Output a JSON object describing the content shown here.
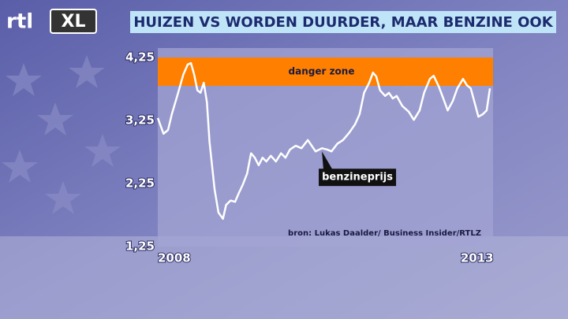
{
  "logo": {
    "left": "rtl",
    "right": "XL"
  },
  "chart_data": {
    "type": "line",
    "title": "HUIZEN VS WORDEN DUURDER, MAAR BENZINE OOK",
    "source": "bron: Lukas Daalder/ Business Insider/RTLZ",
    "x": [
      2008.0,
      2008.09,
      2008.16,
      2008.22,
      2008.31,
      2008.4,
      2008.47,
      2008.52,
      2008.57,
      2008.62,
      2008.67,
      2008.72,
      2008.77,
      2008.81,
      2008.89,
      2008.95,
      2009.02,
      2009.07,
      2009.14,
      2009.21,
      2009.27,
      2009.33,
      2009.4,
      2009.46,
      2009.52,
      2009.58,
      2009.64,
      2009.7,
      2009.77,
      2009.85,
      2009.93,
      2010.0,
      2010.07,
      2010.16,
      2010.25,
      2010.35,
      2010.41,
      2010.47,
      2010.57,
      2010.65,
      2010.72,
      2010.81,
      2010.9,
      2011.0,
      2011.09,
      2011.16,
      2011.23,
      2011.31,
      2011.37,
      2011.42,
      2011.48,
      2011.56,
      2011.62,
      2011.68,
      2011.74,
      2011.83,
      2011.93,
      2012.01,
      2012.1,
      2012.17,
      2012.26,
      2012.32,
      2012.4,
      2012.47,
      2012.54,
      2012.62,
      2012.69,
      2012.78,
      2012.84,
      2012.9,
      2012.96,
      2013.02,
      2013.09,
      2013.15,
      2013.2
    ],
    "series": [
      {
        "name": "benzineprijs",
        "color": "#ffffff",
        "values": [
          3.29,
          3.04,
          3.1,
          3.35,
          3.66,
          3.98,
          4.14,
          4.16,
          3.98,
          3.73,
          3.69,
          3.85,
          3.54,
          2.91,
          2.16,
          1.79,
          1.69,
          1.91,
          1.98,
          1.96,
          2.1,
          2.23,
          2.41,
          2.73,
          2.66,
          2.54,
          2.66,
          2.6,
          2.69,
          2.6,
          2.73,
          2.66,
          2.79,
          2.85,
          2.81,
          2.94,
          2.85,
          2.76,
          2.81,
          2.79,
          2.76,
          2.88,
          2.94,
          3.06,
          3.19,
          3.35,
          3.69,
          3.85,
          4.01,
          3.95,
          3.73,
          3.64,
          3.69,
          3.6,
          3.64,
          3.48,
          3.39,
          3.26,
          3.41,
          3.69,
          3.91,
          3.96,
          3.79,
          3.6,
          3.41,
          3.56,
          3.76,
          3.91,
          3.81,
          3.76,
          3.54,
          3.31,
          3.35,
          3.41,
          3.76
        ]
      }
    ],
    "bands": [
      {
        "label": "danger zone",
        "from": 3.8,
        "to": 4.25,
        "color": "#ff7f00"
      }
    ],
    "xlim": [
      2008,
      2013.25
    ],
    "xticks": [
      2008,
      2013
    ],
    "ylim": [
      1.25,
      4.4
    ],
    "yticks": [
      {
        "value": 1.25,
        "label": "1,25"
      },
      {
        "value": 2.25,
        "label": "2,25"
      },
      {
        "value": 3.25,
        "label": "3,25"
      },
      {
        "value": 4.25,
        "label": "4,25"
      }
    ]
  }
}
